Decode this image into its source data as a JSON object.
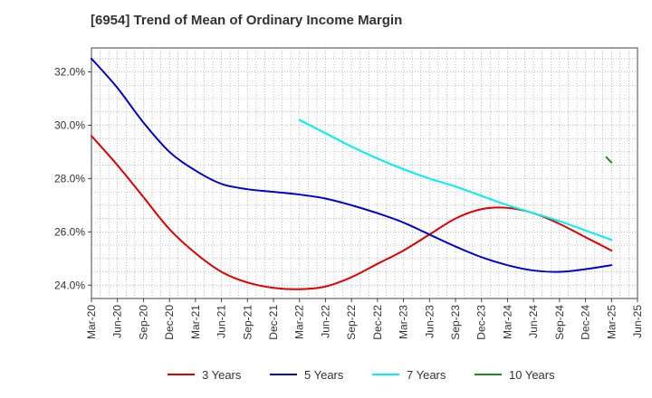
{
  "chart_data": {
    "type": "line",
    "title": "[6954]  Trend of Mean of Ordinary Income Margin",
    "xlabel": "",
    "ylabel": "",
    "categories": [
      "Mar-20",
      "Jun-20",
      "Sep-20",
      "Dec-20",
      "Mar-21",
      "Jun-21",
      "Sep-21",
      "Dec-21",
      "Mar-22",
      "Jun-22",
      "Sep-22",
      "Dec-22",
      "Mar-23",
      "Jun-23",
      "Sep-23",
      "Dec-23",
      "Mar-24",
      "Jun-24",
      "Sep-24",
      "Dec-24",
      "Mar-25",
      "Jun-25"
    ],
    "y_ticks": [
      "24.0%",
      "26.0%",
      "28.0%",
      "30.0%",
      "32.0%"
    ],
    "y_tick_values": [
      24,
      26,
      28,
      30,
      32
    ],
    "ylim": [
      23.5,
      32.9
    ],
    "grid": true,
    "legend_position": "bottom",
    "series": [
      {
        "name": "3 Years",
        "color": "#dd0000",
        "values": [
          29.6,
          28.5,
          27.3,
          26.1,
          25.2,
          24.5,
          24.1,
          23.9,
          23.85,
          23.95,
          24.3,
          24.8,
          25.3,
          25.9,
          26.5,
          26.85,
          26.9,
          26.7,
          26.3,
          25.8,
          25.3,
          null
        ]
      },
      {
        "name": "5 Years",
        "color": "#0000cc",
        "values": [
          32.5,
          31.4,
          30.1,
          29.0,
          28.3,
          27.8,
          27.6,
          27.5,
          27.4,
          27.25,
          27.0,
          26.7,
          26.35,
          25.9,
          25.45,
          25.05,
          24.75,
          24.55,
          24.5,
          24.6,
          24.75,
          null
        ]
      },
      {
        "name": "7 Years",
        "color": "#00eeee",
        "values": [
          null,
          null,
          null,
          null,
          null,
          null,
          null,
          null,
          30.2,
          29.7,
          29.2,
          28.75,
          28.35,
          28.0,
          27.7,
          27.35,
          27.0,
          26.7,
          26.4,
          26.05,
          25.7,
          null
        ]
      },
      {
        "name": "10 Years",
        "color": "#228822",
        "values": [
          null,
          null,
          null,
          null,
          null,
          null,
          null,
          null,
          null,
          null,
          null,
          null,
          null,
          null,
          null,
          null,
          null,
          null,
          null,
          null,
          28.6,
          null
        ],
        "segment": [
          [
            19.8,
            28.8
          ],
          [
            20.0,
            28.6
          ]
        ]
      }
    ]
  }
}
